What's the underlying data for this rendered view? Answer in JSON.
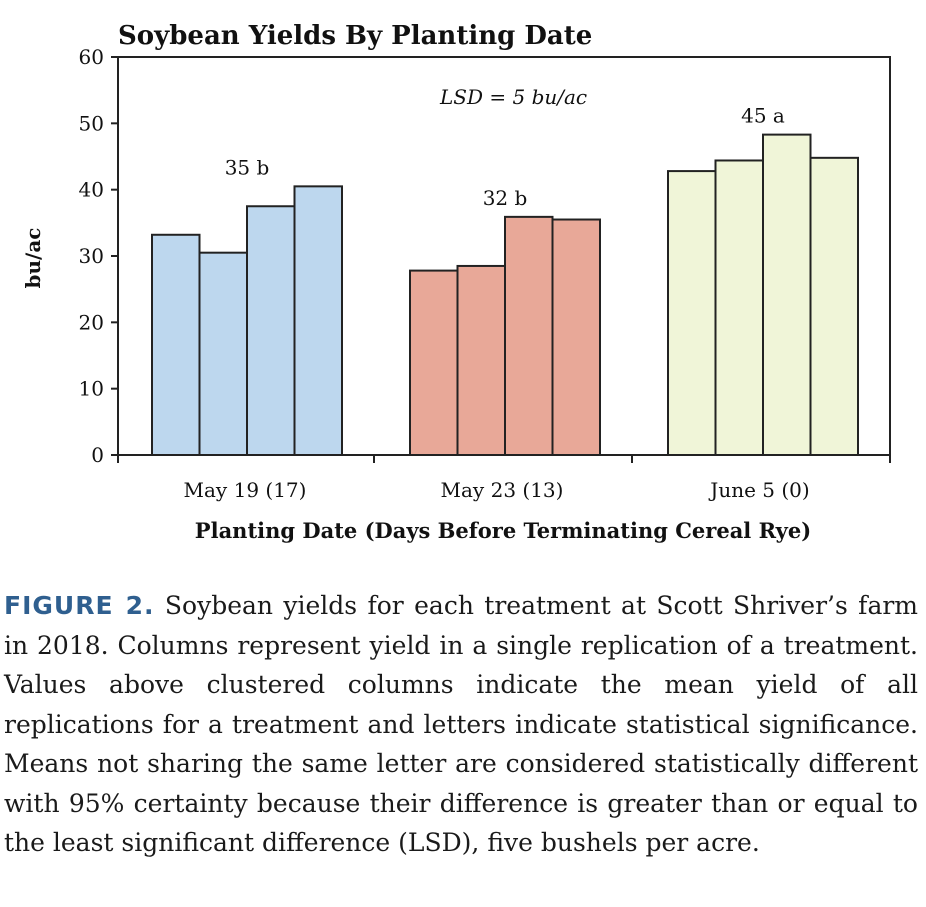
{
  "chart_data": {
    "type": "bar",
    "title": "Soybean Yields By Planting Date",
    "xlabel": "Planting Date (Days Before Terminating Cereal Rye)",
    "ylabel": "bu/ac",
    "ylim": [
      0,
      60
    ],
    "yticks": [
      0,
      10,
      20,
      30,
      40,
      50,
      60
    ],
    "grid": false,
    "annotation": "LSD = 5 bu/ac",
    "groups": [
      {
        "category": "May 19 (17)",
        "values": [
          33.2,
          30.5,
          37.5,
          40.5
        ],
        "mean_label": "35 b",
        "color": "#bdd7ee"
      },
      {
        "category": "May 23 (13)",
        "values": [
          27.8,
          28.5,
          35.9,
          35.5
        ],
        "mean_label": "32 b",
        "color": "#e8a898"
      },
      {
        "category": "June 5 (0)",
        "values": [
          42.8,
          44.4,
          48.3,
          44.8
        ],
        "mean_label": "45 a",
        "color": "#f0f5d8"
      }
    ]
  },
  "caption": {
    "label": "FIGURE 2.",
    "text": "Soybean yields for each treatment at Scott Shriver’s farm in 2018. Columns represent yield in a single replication of a treatment. Values above clustered columns indicate the mean yield of all replications for a treatment and letters indicate statistical significance. Means not sharing the same letter are considered statistically different with 95% certainty because their difference is greater than or equal to the least significant difference (LSD), five bushels per acre."
  }
}
